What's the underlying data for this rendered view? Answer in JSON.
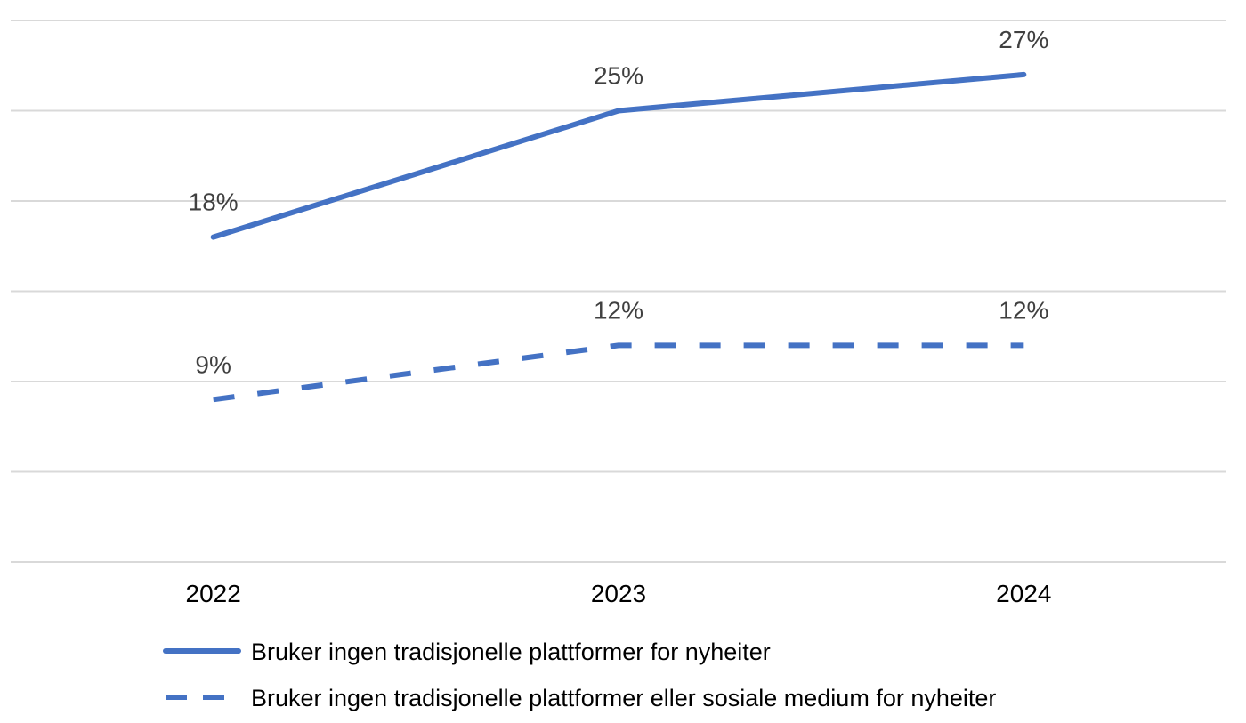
{
  "chart_data": {
    "type": "line",
    "title": "",
    "xlabel": "",
    "ylabel": "",
    "x": [
      "2022",
      "2023",
      "2024"
    ],
    "ylim": [
      0,
      30
    ],
    "grid": true,
    "legend_position": "bottom",
    "series": [
      {
        "name": "Bruker ingen tradisjonelle plattformer for nyheiter",
        "values": [
          18,
          25,
          27
        ],
        "labels": [
          "18%",
          "25%",
          "27%"
        ],
        "style": "solid",
        "color": "#4472c4"
      },
      {
        "name": "Bruker ingen tradisjonelle plattformer eller sosiale medium for nyheiter",
        "values": [
          9,
          12,
          12
        ],
        "labels": [
          "9%",
          "12%",
          "12%"
        ],
        "style": "dashed",
        "color": "#4472c4"
      }
    ]
  }
}
